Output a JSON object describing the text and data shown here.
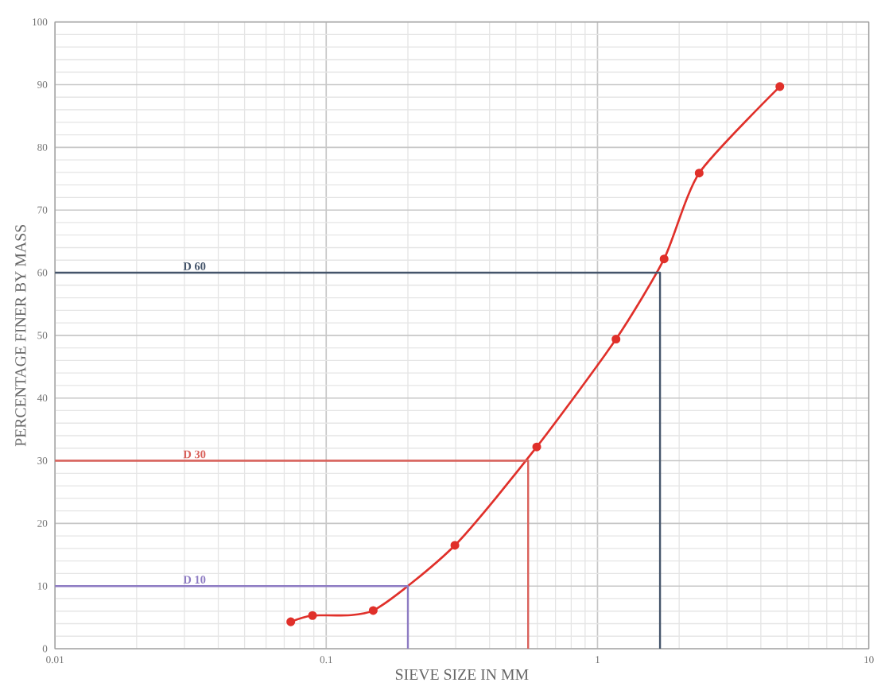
{
  "chart_data": {
    "type": "line",
    "xlabel": "SIEVE SIZE IN MM",
    "ylabel": "PERCENTAGE FINER BY MASS",
    "log": "x",
    "xlim": [
      0.01,
      10
    ],
    "xticks": [
      0.01,
      0.1,
      1,
      10
    ],
    "ylim": [
      0,
      100
    ],
    "yticks": [
      0,
      10,
      20,
      30,
      40,
      50,
      60,
      70,
      80,
      90,
      100
    ],
    "grid": true,
    "legend": false,
    "series": [
      {
        "color": "#e0302a",
        "marker": "circle",
        "x": [
          0.074,
          0.089,
          0.149,
          0.298,
          0.597,
          1.17,
          1.76,
          2.37,
          4.7
        ],
        "values": [
          4.3,
          5.3,
          6.1,
          16.5,
          32.2,
          49.4,
          62.2,
          75.9,
          89.7
        ]
      },
      {
        "name": "D 60",
        "color": "#44546a",
        "marker": "none",
        "x": [
          0.01,
          1.7,
          1.7
        ],
        "values": [
          60,
          60,
          0
        ]
      },
      {
        "name": "D 30",
        "color": "#d9605a",
        "marker": "none",
        "x": [
          0.01,
          0.555,
          0.555
        ],
        "values": [
          30,
          30,
          0
        ]
      },
      {
        "name": "D 10",
        "color": "#8e7cc3",
        "marker": "none",
        "x": [
          0.01,
          0.2,
          0.2
        ],
        "values": [
          10,
          10,
          0
        ]
      }
    ]
  }
}
